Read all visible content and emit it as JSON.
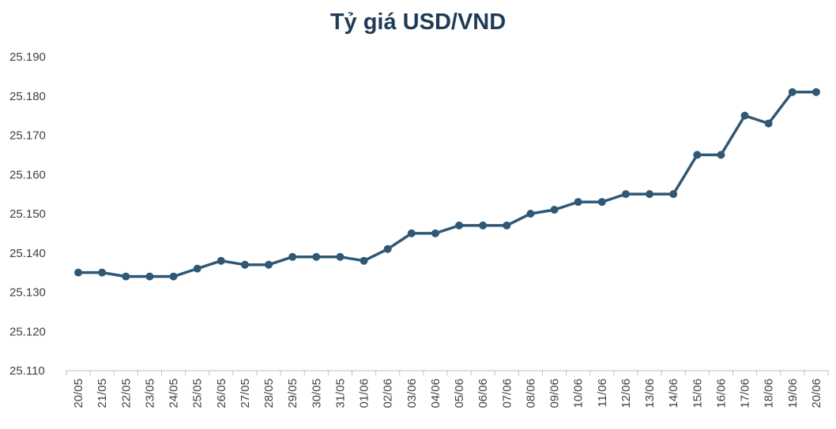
{
  "chart_data": {
    "type": "line",
    "title": "Tỷ giá USD/VND",
    "xlabel": "",
    "ylabel": "",
    "ylim": [
      25110,
      25190
    ],
    "ytick_step": 10,
    "ytick_labels": [
      "25.110",
      "25.120",
      "25.130",
      "25.140",
      "25.150",
      "25.160",
      "25.170",
      "25.180",
      "25.190"
    ],
    "grid": false,
    "legend": "none",
    "color": "#2e5876",
    "categories": [
      "20/05",
      "21/05",
      "22/05",
      "23/05",
      "24/05",
      "25/05",
      "26/05",
      "27/05",
      "28/05",
      "29/05",
      "30/05",
      "31/05",
      "01/06",
      "02/06",
      "03/06",
      "04/06",
      "05/06",
      "06/06",
      "07/06",
      "08/06",
      "09/06",
      "10/06",
      "11/06",
      "12/06",
      "13/06",
      "14/06",
      "15/06",
      "16/06",
      "17/06",
      "18/06",
      "19/06",
      "20/06"
    ],
    "values": [
      25135,
      25135,
      25134,
      25134,
      25134,
      25136,
      25138,
      25137,
      25137,
      25139,
      25139,
      25139,
      25138,
      25141,
      25145,
      25145,
      25147,
      25147,
      25147,
      25150,
      25151,
      25153,
      25153,
      25155,
      25155,
      25155,
      25165,
      25165,
      25175,
      25173,
      25181,
      25181
    ]
  }
}
